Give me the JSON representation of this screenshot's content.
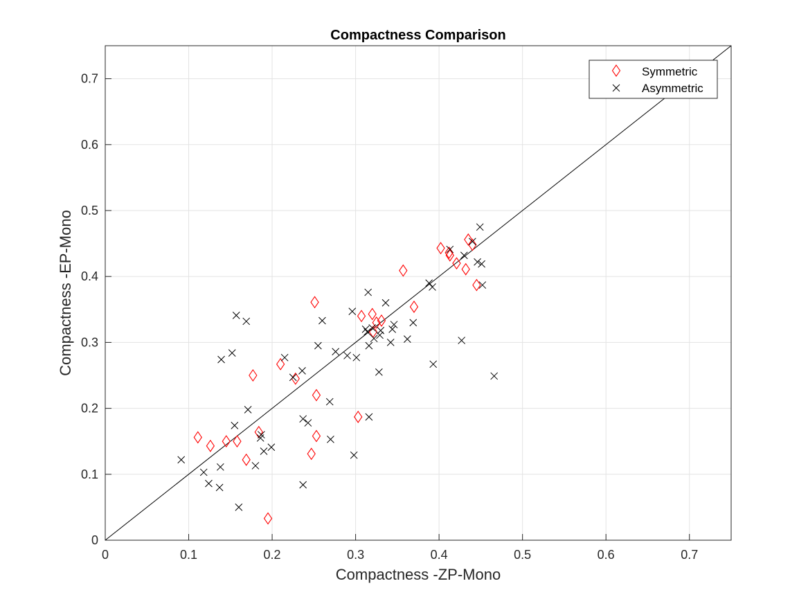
{
  "chart_data": {
    "type": "scatter",
    "title": "Compactness Comparison",
    "xlabel": "Compactness -ZP-Mono",
    "ylabel": "Compactness -EP-Mono",
    "xlim": [
      0,
      0.75
    ],
    "ylim": [
      0,
      0.75
    ],
    "xticks": [
      0,
      0.1,
      0.2,
      0.3,
      0.4,
      0.5,
      0.6,
      0.7
    ],
    "yticks": [
      0,
      0.1,
      0.2,
      0.3,
      0.4,
      0.5,
      0.6,
      0.7
    ],
    "grid": true,
    "legend_position": "top-right",
    "reference_line": {
      "from": [
        0,
        0
      ],
      "to": [
        0.75,
        0.75
      ],
      "color": "#000000"
    },
    "series": [
      {
        "name": "Symmetric",
        "marker": "diamond",
        "color": "#ff0000",
        "points": [
          [
            0.111,
            0.156
          ],
          [
            0.126,
            0.143
          ],
          [
            0.145,
            0.15
          ],
          [
            0.158,
            0.15
          ],
          [
            0.169,
            0.122
          ],
          [
            0.177,
            0.25
          ],
          [
            0.184,
            0.164
          ],
          [
            0.195,
            0.033
          ],
          [
            0.21,
            0.267
          ],
          [
            0.228,
            0.245
          ],
          [
            0.247,
            0.131
          ],
          [
            0.251,
            0.361
          ],
          [
            0.253,
            0.22
          ],
          [
            0.253,
            0.158
          ],
          [
            0.303,
            0.187
          ],
          [
            0.307,
            0.34
          ],
          [
            0.32,
            0.343
          ],
          [
            0.321,
            0.316
          ],
          [
            0.325,
            0.33
          ],
          [
            0.331,
            0.333
          ],
          [
            0.357,
            0.409
          ],
          [
            0.37,
            0.354
          ],
          [
            0.402,
            0.443
          ],
          [
            0.412,
            0.436
          ],
          [
            0.413,
            0.432
          ],
          [
            0.421,
            0.42
          ],
          [
            0.432,
            0.411
          ],
          [
            0.435,
            0.456
          ],
          [
            0.44,
            0.448
          ],
          [
            0.445,
            0.387
          ]
        ]
      },
      {
        "name": "Asymmetric",
        "marker": "x",
        "color": "#000000",
        "points": [
          [
            0.091,
            0.122
          ],
          [
            0.118,
            0.103
          ],
          [
            0.124,
            0.086
          ],
          [
            0.137,
            0.08
          ],
          [
            0.138,
            0.111
          ],
          [
            0.139,
            0.274
          ],
          [
            0.152,
            0.284
          ],
          [
            0.155,
            0.174
          ],
          [
            0.157,
            0.341
          ],
          [
            0.16,
            0.05
          ],
          [
            0.169,
            0.332
          ],
          [
            0.171,
            0.198
          ],
          [
            0.18,
            0.113
          ],
          [
            0.186,
            0.155
          ],
          [
            0.187,
            0.16
          ],
          [
            0.19,
            0.135
          ],
          [
            0.199,
            0.141
          ],
          [
            0.215,
            0.277
          ],
          [
            0.225,
            0.247
          ],
          [
            0.236,
            0.257
          ],
          [
            0.237,
            0.084
          ],
          [
            0.237,
            0.184
          ],
          [
            0.243,
            0.178
          ],
          [
            0.255,
            0.295
          ],
          [
            0.26,
            0.333
          ],
          [
            0.269,
            0.21
          ],
          [
            0.27,
            0.153
          ],
          [
            0.276,
            0.286
          ],
          [
            0.29,
            0.28
          ],
          [
            0.296,
            0.347
          ],
          [
            0.298,
            0.129
          ],
          [
            0.301,
            0.277
          ],
          [
            0.312,
            0.32
          ],
          [
            0.314,
            0.316
          ],
          [
            0.315,
            0.376
          ],
          [
            0.316,
            0.295
          ],
          [
            0.316,
            0.187
          ],
          [
            0.32,
            0.322
          ],
          [
            0.322,
            0.306
          ],
          [
            0.328,
            0.255
          ],
          [
            0.329,
            0.311
          ],
          [
            0.33,
            0.318
          ],
          [
            0.336,
            0.36
          ],
          [
            0.342,
            0.3
          ],
          [
            0.344,
            0.32
          ],
          [
            0.346,
            0.327
          ],
          [
            0.362,
            0.305
          ],
          [
            0.369,
            0.33
          ],
          [
            0.388,
            0.39
          ],
          [
            0.392,
            0.384
          ],
          [
            0.393,
            0.267
          ],
          [
            0.413,
            0.441
          ],
          [
            0.427,
            0.303
          ],
          [
            0.43,
            0.432
          ],
          [
            0.44,
            0.453
          ],
          [
            0.446,
            0.422
          ],
          [
            0.449,
            0.475
          ],
          [
            0.451,
            0.419
          ],
          [
            0.452,
            0.387
          ],
          [
            0.466,
            0.249
          ]
        ]
      }
    ]
  }
}
